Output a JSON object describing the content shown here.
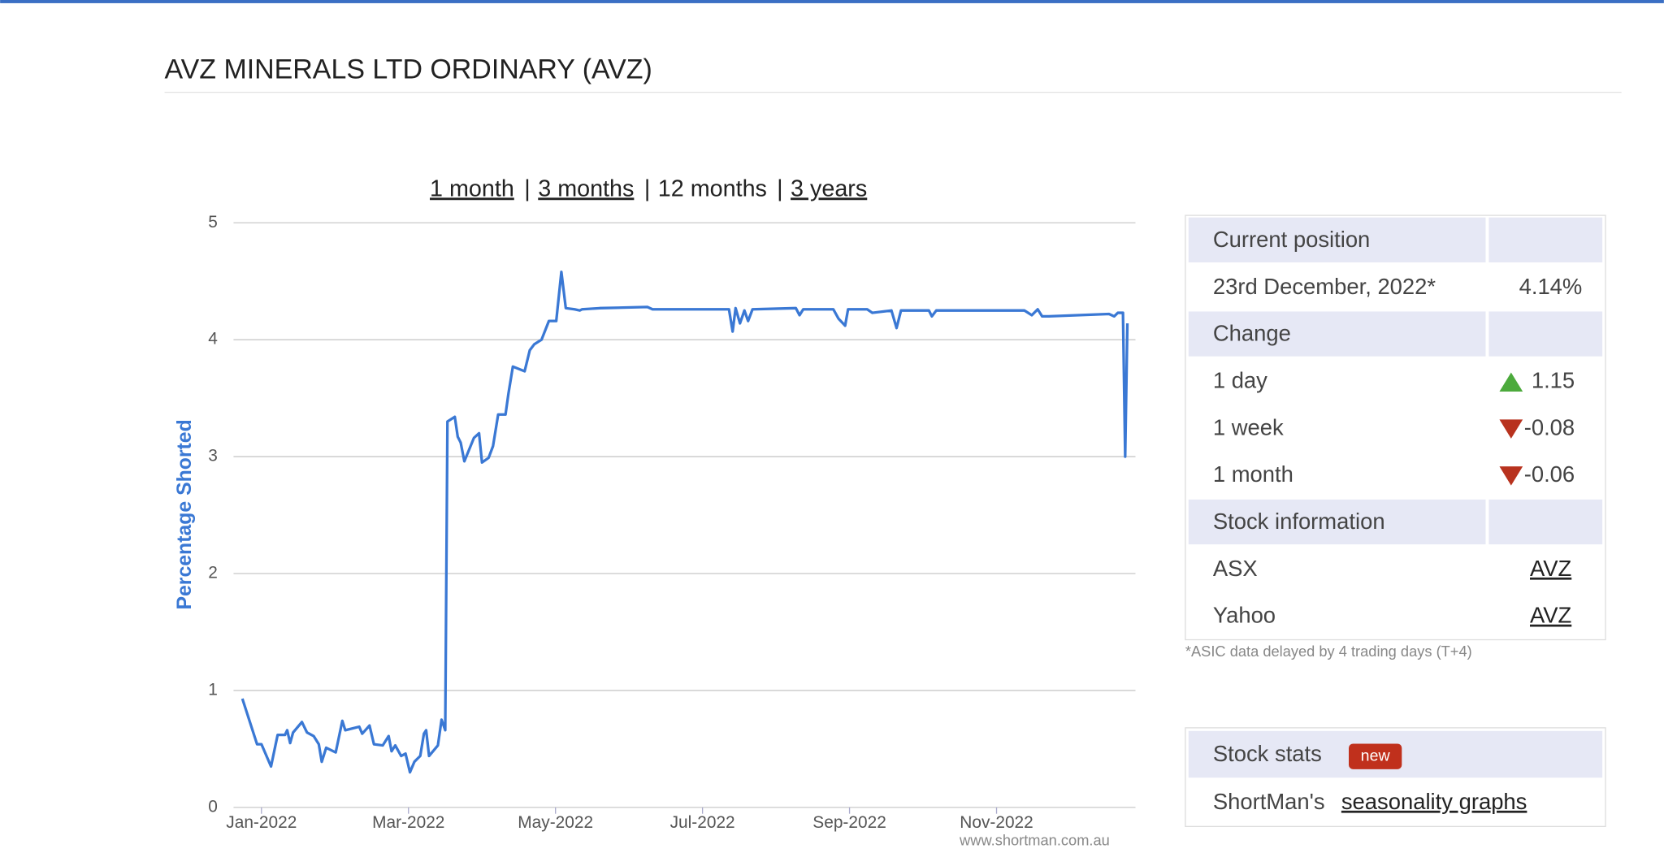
{
  "header": {
    "title": "AVZ MINERALS LTD ORDINARY (AVZ)"
  },
  "range_links": [
    "1 month",
    "3 months",
    "12 months",
    "3 years"
  ],
  "link_separator": "|",
  "chart_data": {
    "type": "line",
    "y_label": "Percentage Shorted",
    "credit": "www.shortman.com.au",
    "color": "#3a78d4",
    "grid": true,
    "x": [
      0.74,
      0.94,
      1.0,
      1.13,
      1.22,
      1.32,
      1.35,
      1.39,
      1.43,
      1.55,
      1.62,
      1.71,
      1.78,
      1.82,
      1.88,
      2.01,
      2.1,
      2.14,
      2.33,
      2.37,
      2.47,
      2.53,
      2.65,
      2.73,
      2.77,
      2.82,
      2.9,
      2.96,
      3.02,
      3.08,
      3.16,
      3.21,
      3.24,
      3.28,
      3.4,
      3.45,
      3.5,
      3.53,
      3.63,
      3.67,
      3.71,
      3.76,
      3.89,
      3.96,
      4.0,
      4.09,
      4.15,
      4.22,
      4.32,
      4.36,
      4.42,
      4.58,
      4.65,
      4.71,
      4.81,
      4.91,
      5.01,
      5.08,
      5.14,
      5.26,
      5.33,
      5.36,
      5.6,
      6.25,
      6.32,
      7.36,
      7.41,
      7.45,
      7.51,
      7.57,
      7.62,
      7.68,
      8.27,
      8.32,
      8.37,
      8.78,
      8.85,
      8.94,
      8.98,
      9.24,
      9.31,
      9.57,
      9.64,
      9.7,
      10.08,
      10.12,
      10.18,
      11.38,
      11.48,
      11.56,
      11.62,
      11.71,
      12.53,
      12.6,
      12.65,
      12.72,
      12.75,
      12.78
    ],
    "values": [
      0.93,
      0.54,
      0.54,
      0.35,
      0.62,
      0.62,
      0.66,
      0.55,
      0.64,
      0.73,
      0.64,
      0.61,
      0.54,
      0.39,
      0.51,
      0.47,
      0.74,
      0.66,
      0.69,
      0.63,
      0.7,
      0.54,
      0.53,
      0.61,
      0.48,
      0.53,
      0.44,
      0.46,
      0.3,
      0.39,
      0.44,
      0.63,
      0.66,
      0.44,
      0.53,
      0.75,
      0.66,
      3.3,
      3.34,
      3.17,
      3.12,
      2.96,
      3.16,
      3.2,
      2.95,
      2.99,
      3.09,
      3.36,
      3.36,
      3.54,
      3.77,
      3.73,
      3.91,
      3.96,
      4.0,
      4.16,
      4.16,
      4.58,
      4.27,
      4.26,
      4.25,
      4.26,
      4.27,
      4.28,
      4.26,
      4.26,
      4.07,
      4.27,
      4.14,
      4.25,
      4.16,
      4.26,
      4.27,
      4.21,
      4.26,
      4.26,
      4.18,
      4.12,
      4.26,
      4.26,
      4.23,
      4.25,
      4.1,
      4.25,
      4.25,
      4.2,
      4.25,
      4.25,
      4.21,
      4.26,
      4.2,
      4.2,
      4.22,
      4.2,
      4.23,
      4.23,
      3.0,
      4.14
    ],
    "xlim": [
      0.62,
      12.89
    ],
    "ylim": [
      0,
      5
    ],
    "xticks": [
      {
        "value": 1,
        "label": "Jan-2022"
      },
      {
        "value": 3,
        "label": "Mar-2022"
      },
      {
        "value": 5,
        "label": "May-2022"
      },
      {
        "value": 7,
        "label": "Jul-2022"
      },
      {
        "value": 9,
        "label": "Sep-2022"
      },
      {
        "value": 11,
        "label": "Nov-2022"
      }
    ],
    "yticks": [
      0,
      1,
      2,
      3,
      4,
      5
    ]
  },
  "position_table": {
    "sections": [
      {
        "heading": "Current position",
        "rows": [
          [
            "23rd December, 2022*",
            "4.14%"
          ]
        ]
      },
      {
        "heading": "Change",
        "rows": [
          [
            "1 day",
            "1.15"
          ],
          [
            "1 week",
            "-0.08"
          ],
          [
            "1 month",
            "-0.06"
          ]
        ]
      },
      {
        "heading": "Stock information",
        "rows": [
          [
            "ASX",
            "AVZ"
          ],
          [
            "Yahoo",
            "AVZ"
          ]
        ]
      }
    ]
  },
  "footnote": "*ASIC data delayed by 4 trading days (T+4)",
  "stats": {
    "title": "Stock stats",
    "badge": "new",
    "text": "ShortMan's",
    "link": "seasonality graphs"
  }
}
